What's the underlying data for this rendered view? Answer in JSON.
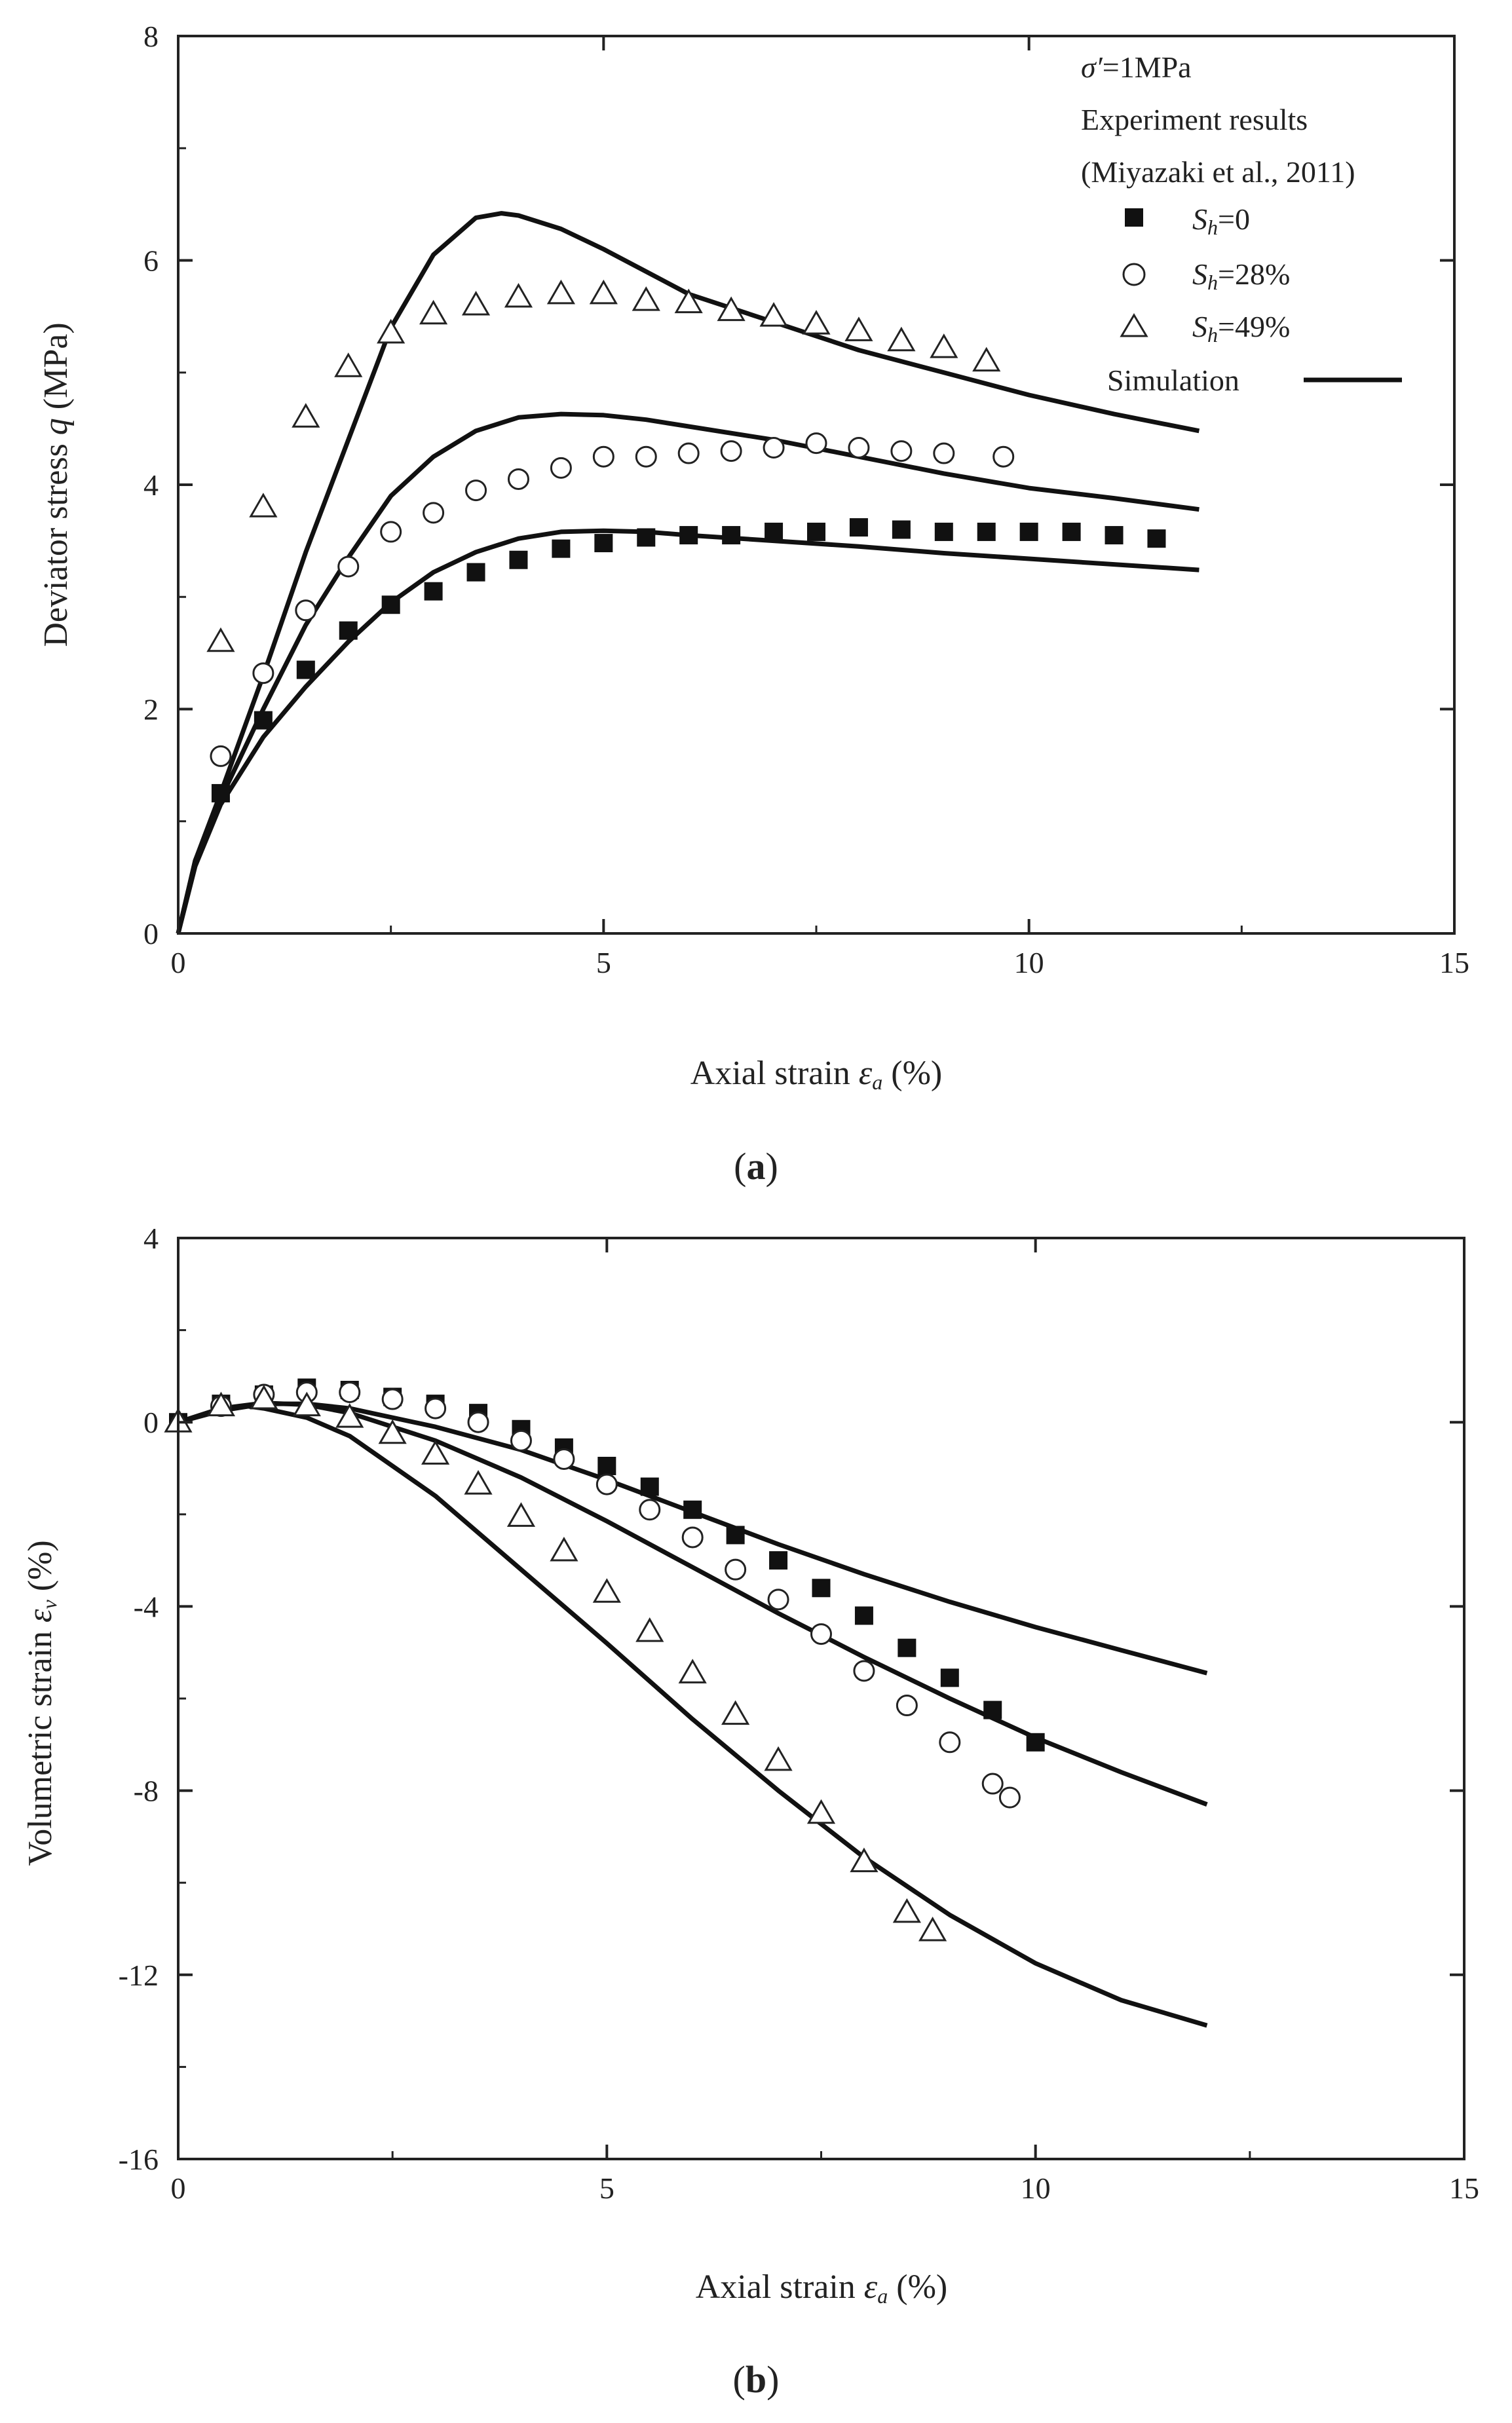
{
  "chart_data": [
    {
      "type": "scatter",
      "panel_label": "a",
      "xlabel": "Axial strain",
      "xlabel_symbol": "ε",
      "xlabel_sub": "a",
      "xlabel_unit": "(%)",
      "ylabel": "Deviator stress",
      "ylabel_symbol": "q",
      "ylabel_unit": "(MPa)",
      "xlim": [
        0,
        15
      ],
      "ylim": [
        0,
        8
      ],
      "xticks": [
        0,
        5,
        10,
        15
      ],
      "yticks": [
        0,
        2,
        4,
        6,
        8
      ],
      "legend": {
        "condition_symbol": "σ′",
        "condition_text": "=1MPa",
        "heading1": "Experiment results",
        "heading2": "(Miyazaki et al., 2011)",
        "simulation_label": "Simulation",
        "entries": [
          {
            "var": "S",
            "sub": "h",
            "value": "=0",
            "marker": "square"
          },
          {
            "var": "S",
            "sub": "h",
            "value": "=28%",
            "marker": "circle"
          },
          {
            "var": "S",
            "sub": "h",
            "value": "=49%",
            "marker": "triangle"
          }
        ]
      },
      "series": [
        {
          "name": "Sh=0",
          "marker": "square",
          "x": [
            0.5,
            1,
            1.5,
            2,
            2.5,
            3,
            3.5,
            4,
            4.5,
            5,
            5.5,
            6,
            6.5,
            7,
            7.5,
            8,
            8.5,
            9,
            9.5,
            10,
            10.5,
            11,
            11.5
          ],
          "y": [
            1.25,
            1.9,
            2.35,
            2.7,
            2.93,
            3.05,
            3.22,
            3.33,
            3.43,
            3.48,
            3.53,
            3.55,
            3.55,
            3.58,
            3.58,
            3.62,
            3.6,
            3.58,
            3.58,
            3.58,
            3.58,
            3.55,
            3.52
          ]
        },
        {
          "name": "Sh=28%",
          "marker": "circle",
          "x": [
            0.5,
            1,
            1.5,
            2,
            2.5,
            3,
            3.5,
            4,
            4.5,
            5,
            5.5,
            6,
            6.5,
            7,
            7.5,
            8,
            8.5,
            9,
            9.7
          ],
          "y": [
            1.58,
            2.32,
            2.88,
            3.27,
            3.58,
            3.75,
            3.95,
            4.05,
            4.15,
            4.25,
            4.25,
            4.28,
            4.3,
            4.33,
            4.37,
            4.33,
            4.3,
            4.28,
            4.25
          ]
        },
        {
          "name": "Sh=49%",
          "marker": "triangle",
          "x": [
            0.5,
            1,
            1.5,
            2,
            2.5,
            3,
            3.5,
            4,
            4.5,
            5,
            5.5,
            6,
            6.5,
            7,
            7.5,
            8,
            8.5,
            9,
            9.5
          ],
          "y": [
            2.6,
            3.8,
            4.6,
            5.05,
            5.35,
            5.52,
            5.6,
            5.67,
            5.7,
            5.7,
            5.64,
            5.62,
            5.55,
            5.5,
            5.43,
            5.37,
            5.28,
            5.22,
            5.1
          ]
        },
        {
          "name": "Simulation Sh=0",
          "marker": "line",
          "x": [
            0,
            0.2,
            0.5,
            1,
            1.5,
            2,
            2.5,
            3,
            3.5,
            4,
            4.5,
            5,
            5.5,
            6,
            7,
            8,
            9,
            10,
            11,
            12
          ],
          "y": [
            0,
            0.6,
            1.15,
            1.75,
            2.2,
            2.6,
            2.95,
            3.22,
            3.4,
            3.52,
            3.58,
            3.59,
            3.58,
            3.55,
            3.5,
            3.45,
            3.39,
            3.34,
            3.29,
            3.24
          ]
        },
        {
          "name": "Simulation Sh=28%",
          "marker": "line",
          "x": [
            0,
            0.2,
            0.5,
            1,
            1.5,
            2,
            2.5,
            3,
            3.5,
            4,
            4.5,
            5,
            5.5,
            6,
            7,
            8,
            9,
            10,
            11,
            12
          ],
          "y": [
            0,
            0.65,
            1.2,
            2.0,
            2.75,
            3.35,
            3.9,
            4.25,
            4.48,
            4.6,
            4.63,
            4.62,
            4.58,
            4.52,
            4.4,
            4.25,
            4.1,
            3.97,
            3.88,
            3.78
          ]
        },
        {
          "name": "Simulation Sh=49%",
          "marker": "line",
          "x": [
            0,
            0.2,
            0.5,
            1,
            1.5,
            2,
            2.5,
            3,
            3.5,
            3.8,
            4,
            4.5,
            5,
            5.5,
            6,
            7,
            8,
            9,
            10,
            11,
            12
          ],
          "y": [
            0,
            0.65,
            1.25,
            2.3,
            3.4,
            4.4,
            5.4,
            6.05,
            6.38,
            6.42,
            6.4,
            6.28,
            6.1,
            5.9,
            5.7,
            5.45,
            5.2,
            5.0,
            4.8,
            4.63,
            4.48
          ]
        }
      ]
    },
    {
      "type": "scatter",
      "panel_label": "b",
      "xlabel": "Axial strain",
      "xlabel_symbol": "ε",
      "xlabel_sub": "a",
      "xlabel_unit": "(%)",
      "ylabel": "Volumetric strain",
      "ylabel_symbol": "ε",
      "ylabel_sub": "v",
      "ylabel_unit": "(%)",
      "xlim": [
        0,
        15
      ],
      "ylim": [
        -16,
        4
      ],
      "xticks": [
        0,
        5,
        10,
        15
      ],
      "yticks": [
        -16,
        -12,
        -8,
        -4,
        0,
        4
      ],
      "series": [
        {
          "name": "Sh=0",
          "marker": "square",
          "x": [
            0,
            0.5,
            1,
            1.5,
            2,
            2.5,
            3,
            3.5,
            4,
            4.5,
            5,
            5.5,
            6,
            6.5,
            7,
            7.5,
            8,
            8.5,
            9,
            9.5,
            10
          ],
          "y": [
            0,
            0.4,
            0.6,
            0.75,
            0.7,
            0.55,
            0.4,
            0.2,
            -0.15,
            -0.55,
            -0.95,
            -1.4,
            -1.9,
            -2.45,
            -3.0,
            -3.6,
            -4.2,
            -4.9,
            -5.55,
            -6.25,
            -6.95
          ]
        },
        {
          "name": "Sh=28%",
          "marker": "circle",
          "x": [
            0.5,
            1,
            1.5,
            2,
            2.5,
            3,
            3.5,
            4,
            4.5,
            5,
            5.5,
            6,
            6.5,
            7,
            7.5,
            8,
            8.5,
            9,
            9.5,
            9.7
          ],
          "y": [
            0.35,
            0.6,
            0.65,
            0.65,
            0.5,
            0.3,
            0.0,
            -0.4,
            -0.8,
            -1.35,
            -1.9,
            -2.5,
            -3.2,
            -3.85,
            -4.6,
            -5.4,
            -6.15,
            -6.95,
            -7.85,
            -8.15
          ]
        },
        {
          "name": "Sh=49%",
          "marker": "triangle",
          "x": [
            0,
            0.5,
            1,
            1.5,
            2,
            2.5,
            3,
            3.5,
            4,
            4.5,
            5,
            5.5,
            6,
            6.5,
            7,
            7.5,
            8,
            8.5,
            8.8
          ],
          "y": [
            0,
            0.35,
            0.5,
            0.35,
            0.1,
            -0.25,
            -0.7,
            -1.35,
            -2.05,
            -2.8,
            -3.7,
            -4.55,
            -5.45,
            -6.35,
            -7.35,
            -8.5,
            -9.55,
            -10.65,
            -11.05
          ]
        },
        {
          "name": "Simulation Sh=0",
          "marker": "line",
          "x": [
            0,
            0.5,
            1,
            1.5,
            2,
            3,
            4,
            5,
            6,
            7,
            8,
            9,
            10,
            11,
            12
          ],
          "y": [
            0,
            0.25,
            0.4,
            0.4,
            0.3,
            -0.1,
            -0.6,
            -1.25,
            -1.95,
            -2.65,
            -3.3,
            -3.9,
            -4.45,
            -4.95,
            -5.45
          ]
        },
        {
          "name": "Simulation Sh=28%",
          "marker": "line",
          "x": [
            0,
            0.5,
            1,
            1.5,
            2,
            3,
            4,
            5,
            6,
            7,
            8,
            9,
            10,
            11,
            12
          ],
          "y": [
            0,
            0.3,
            0.42,
            0.38,
            0.2,
            -0.4,
            -1.2,
            -2.15,
            -3.15,
            -4.15,
            -5.1,
            -6.0,
            -6.85,
            -7.6,
            -8.3
          ]
        },
        {
          "name": "Simulation Sh=49%",
          "marker": "line",
          "x": [
            0,
            0.5,
            0.8,
            1,
            1.5,
            2,
            3,
            4,
            5,
            6,
            7,
            8,
            9,
            10,
            11,
            12
          ],
          "y": [
            0,
            0.3,
            0.35,
            0.3,
            0.1,
            -0.3,
            -1.6,
            -3.2,
            -4.8,
            -6.45,
            -8.0,
            -9.45,
            -10.7,
            -11.75,
            -12.55,
            -13.1
          ]
        }
      ]
    }
  ]
}
